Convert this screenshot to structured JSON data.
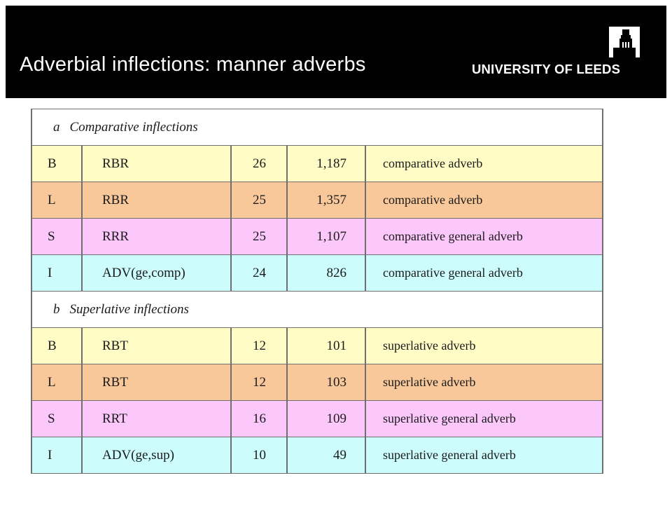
{
  "header": {
    "title": "Adverbial inflections: manner adverbs",
    "logo_text": "UNIVERSITY OF LEEDS",
    "background": "#000000"
  },
  "colors": {
    "B": "#fffdc5",
    "L": "#f9c89a",
    "S": "#fcc8fc",
    "I": "#ccfcfc",
    "section": "#ffffff"
  },
  "table": {
    "sections": [
      {
        "letter": "a",
        "label": "Comparative inflections",
        "rows": [
          {
            "code": "B",
            "tag": "RBR",
            "num": "26",
            "count": "1,187",
            "desc": "comparative adverb"
          },
          {
            "code": "L",
            "tag": "RBR",
            "num": "25",
            "count": "1,357",
            "desc": "comparative adverb"
          },
          {
            "code": "S",
            "tag": "RRR",
            "num": "25",
            "count": "1,107",
            "desc": "comparative general adverb"
          },
          {
            "code": "I",
            "tag": "ADV(ge,comp)",
            "num": "24",
            "count": "826",
            "desc": "comparative general adverb"
          }
        ]
      },
      {
        "letter": "b",
        "label": "Superlative inflections",
        "rows": [
          {
            "code": "B",
            "tag": "RBT",
            "num": "12",
            "count": "101",
            "desc": "superlative adverb"
          },
          {
            "code": "L",
            "tag": "RBT",
            "num": "12",
            "count": "103",
            "desc": "superlative adverb"
          },
          {
            "code": "S",
            "tag": "RRT",
            "num": "16",
            "count": "109",
            "desc": "superlative general adverb"
          },
          {
            "code": "I",
            "tag": "ADV(ge,sup)",
            "num": "10",
            "count": "49",
            "desc": "superlative general adverb"
          }
        ]
      }
    ]
  }
}
